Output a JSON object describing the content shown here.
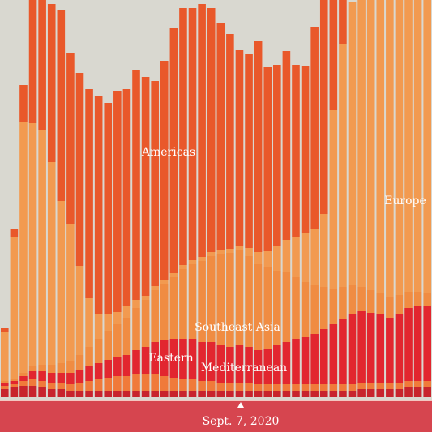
{
  "chart_data": {
    "type": "stacked_bar",
    "ylim": [
      0,
      490
    ],
    "annotations": [
      "Americas",
      "Europe",
      "Southeast Asia",
      "Eastern",
      "Mediterranean"
    ],
    "marker_label": "Sept. 7, 2020",
    "series": [
      {
        "color": "#c8242c",
        "values": [
          10,
          12,
          14,
          14,
          12,
          10,
          10,
          8,
          8,
          8,
          8,
          8,
          8,
          8,
          8,
          8,
          8,
          8,
          8,
          8,
          8,
          8,
          8,
          8,
          8,
          8,
          8,
          8,
          8,
          8,
          8,
          8,
          8,
          8,
          8,
          8,
          8,
          8,
          10,
          10,
          10,
          10,
          10,
          12,
          12,
          12
        ]
      },
      {
        "color": "#f07a3a",
        "values": [
          4,
          4,
          6,
          8,
          8,
          8,
          8,
          8,
          10,
          12,
          14,
          16,
          18,
          18,
          20,
          20,
          20,
          18,
          16,
          14,
          14,
          12,
          12,
          10,
          10,
          10,
          10,
          8,
          8,
          8,
          8,
          8,
          8,
          8,
          8,
          8,
          8,
          8,
          8,
          8,
          8,
          8,
          8,
          8,
          8,
          8
        ]
      },
      {
        "name": "Eastern Mediterranean",
        "color": "#e2262f",
        "values": [
          4,
          4,
          6,
          10,
          12,
          12,
          12,
          14,
          16,
          18,
          20,
          22,
          24,
          26,
          30,
          34,
          40,
          44,
          48,
          50,
          50,
          48,
          48,
          46,
          44,
          46,
          44,
          42,
          44,
          48,
          52,
          56,
          58,
          62,
          68,
          74,
          80,
          86,
          88,
          86,
          84,
          80,
          84,
          90,
          92,
          92
        ]
      },
      {
        "name": "Southeast Asia",
        "color": "#f08c42",
        "values": [
          2,
          2,
          4,
          6,
          8,
          10,
          12,
          14,
          18,
          24,
          30,
          36,
          40,
          46,
          52,
          58,
          64,
          70,
          76,
          86,
          92,
          100,
          106,
          112,
          116,
          118,
          112,
          106,
          100,
          92,
          86,
          76,
          68,
          60,
          52,
          44,
          40,
          36,
          30,
          28,
          26,
          26,
          24,
          20,
          18,
          16
        ]
      },
      {
        "name": "Europe",
        "color": "#f29a50",
        "values": [
          60,
          175,
          310,
          300,
          290,
          250,
          200,
          170,
          110,
          60,
          30,
          20,
          15,
          15,
          10,
          5,
          5,
          5,
          5,
          5,
          5,
          5,
          5,
          5,
          5,
          5,
          10,
          15,
          20,
          30,
          40,
          50,
          60,
          70,
          90,
          220,
          300,
          350,
          370,
          376,
          382,
          384,
          384,
          380,
          380,
          382
        ]
      },
      {
        "name": "Americas",
        "color": "#e9582a",
        "values": [
          5,
          10,
          45,
          152,
          160,
          195,
          236,
          211,
          238,
          258,
          270,
          261,
          273,
          267,
          284,
          270,
          253,
          270,
          302,
          317,
          311,
          312,
          301,
          281,
          265,
          241,
          239,
          261,
          227,
          224,
          233,
          212,
          206,
          249,
          264,
          136,
          54,
          0,
          0,
          0,
          0,
          0,
          0,
          0,
          0,
          0
        ]
      }
    ]
  }
}
